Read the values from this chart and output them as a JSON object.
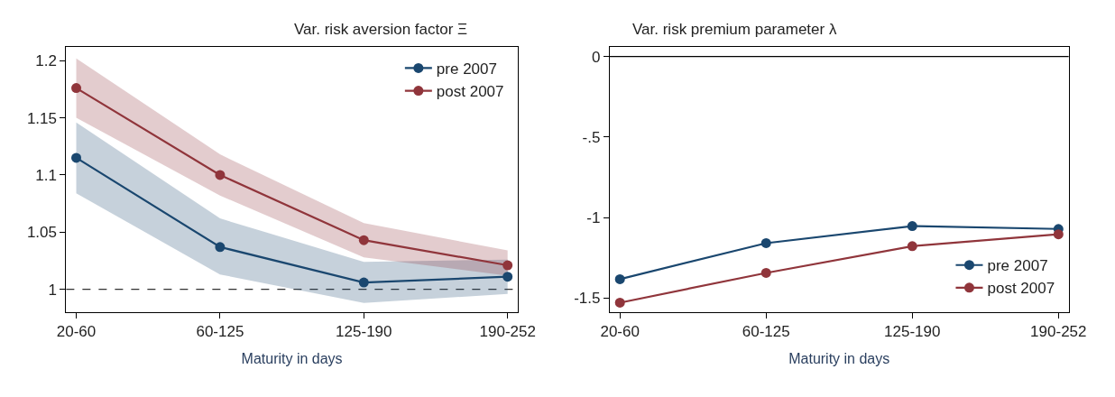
{
  "chart_data": [
    {
      "type": "line",
      "title": "Var. risk aversion factor Ξ",
      "xlabel": "Maturity in days",
      "categories": [
        "20-60",
        "60-125",
        "125-190",
        "190-252"
      ],
      "series": [
        {
          "name": "pre 2007",
          "color": "#1a476f",
          "values": [
            1.115,
            1.037,
            1.006,
            1.011
          ],
          "lower": [
            1.084,
            1.013,
            0.988,
            0.996
          ],
          "upper": [
            1.146,
            1.062,
            1.024,
            1.026
          ]
        },
        {
          "name": "post 2007",
          "color": "#90353b",
          "values": [
            1.176,
            1.1,
            1.043,
            1.021
          ],
          "lower": [
            1.15,
            1.082,
            1.028,
            1.012
          ],
          "upper": [
            1.202,
            1.118,
            1.058,
            1.034
          ]
        }
      ],
      "ylim": [
        0.98,
        1.212
      ],
      "yticks": [
        1,
        1.05,
        1.1,
        1.15,
        1.2
      ],
      "ref_lines": [
        {
          "axis": "y",
          "value": 1,
          "color": "#333333",
          "line_style": "dashed"
        }
      ],
      "legend": "top right",
      "marker": "circle",
      "line_style": "solid",
      "grid": false
    },
    {
      "type": "line",
      "title": "Var. risk premium parameter λ",
      "xlabel": "Maturity in days",
      "categories": [
        "20-60",
        "60-125",
        "125-190",
        "190-252"
      ],
      "series": [
        {
          "name": "pre 2007",
          "color": "#1a476f",
          "values": [
            -1.383,
            -1.159,
            -1.053,
            -1.071
          ]
        },
        {
          "name": "post 2007",
          "color": "#90353b",
          "values": [
            -1.529,
            -1.344,
            -1.178,
            -1.104
          ]
        }
      ],
      "ylim": [
        -1.588,
        0.06
      ],
      "yticks": [
        0,
        {
          "value": -0.5,
          "label": "-.5"
        },
        -1,
        -1.5
      ],
      "ref_lines": [
        {
          "axis": "y",
          "value": 0,
          "color": "#000000",
          "line_style": "solid"
        }
      ],
      "legend": "bottom right",
      "marker": "circle",
      "line_style": "solid",
      "grid": false
    }
  ]
}
